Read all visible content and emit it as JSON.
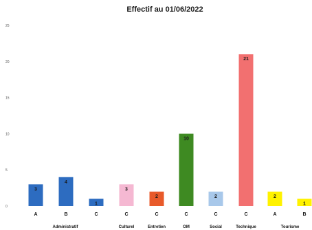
{
  "chart_data": {
    "type": "bar",
    "title": "Effectif au 01/06/2022",
    "xlabel": "",
    "ylabel": "",
    "ylim": [
      0,
      25
    ],
    "yticks": [
      "0",
      "5",
      "10",
      "15",
      "20",
      "25"
    ],
    "grid": false,
    "legend": "none",
    "groups": [
      "Administratif",
      "Culturel",
      "Entretien",
      "OM",
      "Social",
      "Technique",
      "Tourisme"
    ],
    "bars": [
      {
        "group": "Administratif",
        "category": "A",
        "value": 3,
        "color": "#2d6cc0",
        "label_color": "#1a1a1a"
      },
      {
        "group": "Administratif",
        "category": "B",
        "value": 4,
        "color": "#2d6cc0",
        "label_color": "#1a1a1a"
      },
      {
        "group": "Administratif",
        "category": "C",
        "value": 1,
        "color": "#2d6cc0",
        "label_color": "#1a1a1a"
      },
      {
        "group": "Culturel",
        "category": "C",
        "value": 3,
        "color": "#f5b8d2",
        "label_color": "#1a1a1a"
      },
      {
        "group": "Entretien",
        "category": "C",
        "value": 2,
        "color": "#e85a2a",
        "label_color": "#1a1a1a"
      },
      {
        "group": "OM",
        "category": "C",
        "value": 10,
        "color": "#3e8a22",
        "label_color": "#1a1a1a"
      },
      {
        "group": "Social",
        "category": "C",
        "value": 2,
        "color": "#a8c8ea",
        "label_color": "#1a1a1a"
      },
      {
        "group": "Technique",
        "category": "C",
        "value": 21,
        "color": "#f27070",
        "label_color": "#1a1a1a"
      },
      {
        "group": "Tourisme",
        "category": "A",
        "value": 2,
        "color": "#fff200",
        "label_color": "#1a1a1a"
      },
      {
        "group": "Tourisme",
        "category": "B",
        "value": 1,
        "color": "#fff200",
        "label_color": "#1a1a1a"
      }
    ]
  }
}
